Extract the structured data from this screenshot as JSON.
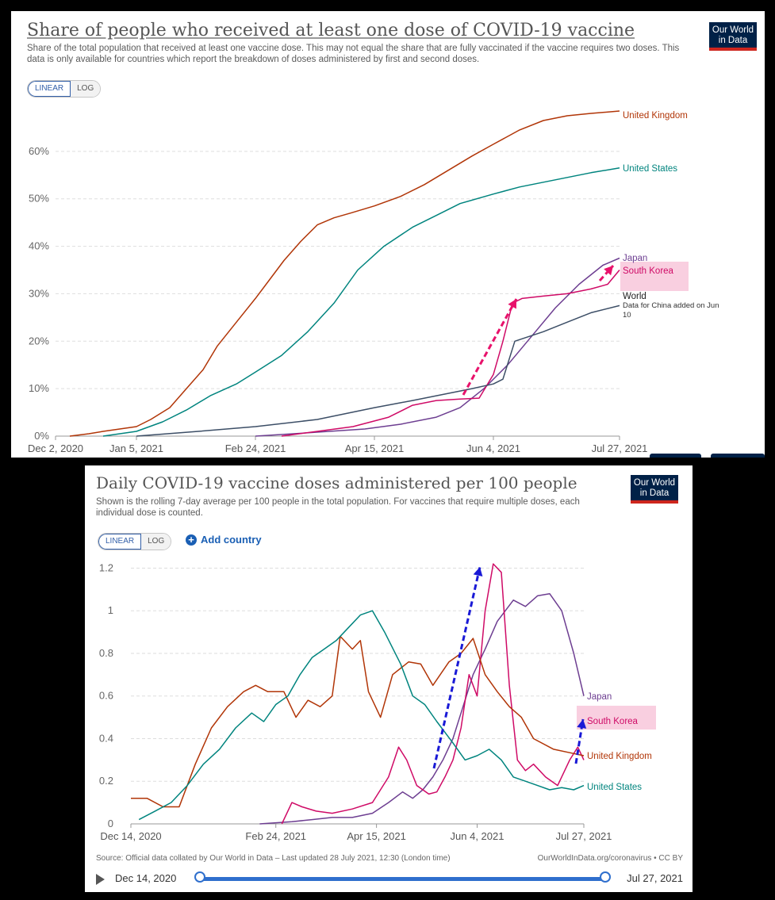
{
  "top_panel": {
    "title": "Share of people who received at least one dose of COVID-19 vaccine",
    "subtitle": "Share of the total population that received at least one vaccine dose. This may not equal the share that are fully vaccinated if the vaccine requires two doses. This data is only available for countries which report the breakdown of doses administered by first and second doses.",
    "logo_line1": "Our World",
    "logo_line2": "in Data",
    "scale_linear": "LINEAR",
    "scale_log": "LOG"
  },
  "bottom_panel": {
    "title": "Daily COVID-19 vaccine doses administered per 100 people",
    "subtitle": "Shown is the rolling 7-day average per 100 people in the total population. For vaccines that require multiple doses, each individual dose is counted.",
    "logo_line1": "Our World",
    "logo_line2": "in Data",
    "scale_linear": "LINEAR",
    "scale_log": "LOG",
    "add_country": "Add country",
    "source": "Source: Official data collated by Our World in Data – Last updated 28 July 2021, 12:30 (London time)",
    "source_right": "OurWorldInData.org/coronavirus • CC BY",
    "timeline_start": "Dec 14, 2020",
    "timeline_end": "Jul 27, 2021"
  },
  "colors": {
    "uk": "#b13507",
    "us": "#00847e",
    "japan": "#6d3e91",
    "south_korea": "#cf0a66",
    "world": "#3c4e66",
    "arrow_top": "#e8126b",
    "arrow_bottom": "#1a1ad6",
    "highlight": "#f9cfe0",
    "grid": "#dddddd"
  },
  "chart_data": [
    {
      "type": "line",
      "title": "Share of people who received at least one dose of COVID-19 vaccine",
      "ylim": [
        0,
        70
      ],
      "yticks": [
        0,
        10,
        20,
        30,
        40,
        50,
        60
      ],
      "ytick_labels": [
        "0%",
        "10%",
        "20%",
        "30%",
        "40%",
        "50%",
        "60%"
      ],
      "xlim": [
        0,
        237
      ],
      "xticks": [
        0,
        34,
        84,
        134,
        184,
        237
      ],
      "xtick_labels": [
        "Dec 2, 2020",
        "Jan 5, 2021",
        "Feb 24, 2021",
        "Apr 15, 2021",
        "Jun 4, 2021",
        "Jul 27, 2021"
      ],
      "series": [
        {
          "name": "United Kingdom",
          "label": "United Kingdom",
          "color": "#b13507",
          "x": [
            6,
            14,
            20,
            34,
            40,
            48,
            55,
            62,
            68,
            76,
            84,
            90,
            96,
            103,
            110,
            117,
            124,
            134,
            145,
            155,
            165,
            175,
            184,
            195,
            205,
            215,
            225,
            237
          ],
          "y": [
            0,
            0.5,
            1,
            2,
            3.5,
            6,
            10,
            14,
            19,
            24,
            29,
            33,
            37,
            41,
            44.5,
            46,
            47,
            48.5,
            50.5,
            53,
            56,
            59,
            61.5,
            64.5,
            66.5,
            67.5,
            68,
            68.5
          ]
        },
        {
          "name": "United States",
          "label": "United States",
          "color": "#00847e",
          "x": [
            20,
            34,
            45,
            55,
            65,
            76,
            84,
            95,
            106,
            117,
            127,
            138,
            150,
            160,
            170,
            184,
            195,
            205,
            215,
            225,
            237
          ],
          "y": [
            0,
            1,
            3,
            5.5,
            8.5,
            11,
            13.5,
            17,
            22,
            28,
            35,
            40,
            44,
            46.5,
            49,
            51,
            52.5,
            53.5,
            54.5,
            55.5,
            56.5
          ]
        },
        {
          "name": "Japan",
          "label": "Japan",
          "color": "#6d3e91",
          "x": [
            84,
            100,
            115,
            130,
            145,
            160,
            170,
            180,
            190,
            200,
            210,
            220,
            230,
            237
          ],
          "y": [
            0,
            0.5,
            1,
            1.5,
            2.5,
            4,
            6,
            10,
            15,
            21,
            27,
            32,
            36,
            37.5
          ]
        },
        {
          "name": "South Korea",
          "label": "South Korea",
          "color": "#cf0a66",
          "x": [
            95,
            110,
            125,
            140,
            150,
            160,
            170,
            178,
            184,
            188,
            192,
            196,
            205,
            215,
            225,
            232,
            237
          ],
          "y": [
            0,
            1,
            2,
            4,
            6.5,
            7.5,
            7.8,
            8,
            13,
            20,
            28,
            29,
            29.5,
            30,
            31,
            32,
            35
          ]
        },
        {
          "name": "World",
          "label": "World",
          "color": "#3c4e66",
          "x": [
            34,
            60,
            84,
            110,
            134,
            150,
            165,
            175,
            184,
            188,
            193,
            205,
            215,
            225,
            237
          ],
          "y": [
            0,
            1,
            2,
            3.5,
            6,
            7.5,
            9,
            10,
            11,
            12,
            20,
            22,
            24,
            26,
            27.5
          ]
        }
      ],
      "annotations": [
        "Data for China added on Jun",
        "10"
      ]
    },
    {
      "type": "line",
      "title": "Daily COVID-19 vaccine doses administered per 100 people",
      "ylim": [
        0,
        1.25
      ],
      "yticks": [
        0,
        0.2,
        0.4,
        0.6,
        0.8,
        1,
        1.2
      ],
      "ytick_labels": [
        "0",
        "0.2",
        "0.4",
        "0.6",
        "0.8",
        "1",
        "1.2"
      ],
      "xlim": [
        0,
        225
      ],
      "xticks": [
        0,
        72,
        122,
        172,
        225
      ],
      "xtick_labels": [
        "Dec 14, 2020",
        "Feb 24, 2021",
        "Apr 15, 2021",
        "Jun 4, 2021",
        "Jul 27, 2021"
      ],
      "series": [
        {
          "name": "Japan",
          "label": "Japan",
          "color": "#6d3e91",
          "x": [
            64,
            80,
            90,
            100,
            110,
            120,
            128,
            135,
            140,
            145,
            150,
            155,
            160,
            165,
            170,
            176,
            182,
            190,
            196,
            202,
            208,
            214,
            220,
            225
          ],
          "y": [
            0,
            0.01,
            0.02,
            0.03,
            0.03,
            0.05,
            0.1,
            0.15,
            0.12,
            0.16,
            0.22,
            0.3,
            0.4,
            0.55,
            0.7,
            0.82,
            0.95,
            1.05,
            1.02,
            1.07,
            1.08,
            1.0,
            0.8,
            0.6
          ]
        },
        {
          "name": "South Korea",
          "label": "South Korea",
          "color": "#cf0a66",
          "x": [
            75,
            80,
            85,
            92,
            100,
            110,
            120,
            128,
            133,
            137,
            142,
            148,
            152,
            156,
            160,
            164,
            168,
            172,
            176,
            180,
            184,
            188,
            192,
            196,
            200,
            206,
            212,
            218,
            222,
            225
          ],
          "y": [
            0,
            0.1,
            0.08,
            0.06,
            0.05,
            0.07,
            0.1,
            0.22,
            0.36,
            0.3,
            0.18,
            0.14,
            0.15,
            0.22,
            0.3,
            0.45,
            0.7,
            0.6,
            1.0,
            1.22,
            1.18,
            0.65,
            0.3,
            0.25,
            0.28,
            0.22,
            0.18,
            0.3,
            0.36,
            0.3
          ]
        },
        {
          "name": "United Kingdom",
          "label": "United Kingdom",
          "color": "#b13507",
          "x": [
            0,
            8,
            16,
            24,
            32,
            40,
            48,
            56,
            62,
            68,
            76,
            82,
            88,
            94,
            100,
            104,
            110,
            114,
            118,
            124,
            130,
            138,
            144,
            150,
            158,
            164,
            170,
            176,
            182,
            188,
            194,
            200,
            210,
            220,
            225
          ],
          "y": [
            0.12,
            0.12,
            0.08,
            0.08,
            0.28,
            0.45,
            0.55,
            0.62,
            0.65,
            0.62,
            0.62,
            0.5,
            0.58,
            0.55,
            0.6,
            0.88,
            0.82,
            0.86,
            0.62,
            0.5,
            0.7,
            0.76,
            0.75,
            0.65,
            0.76,
            0.8,
            0.87,
            0.7,
            0.62,
            0.55,
            0.5,
            0.4,
            0.35,
            0.33,
            0.32
          ]
        },
        {
          "name": "United States",
          "label": "United States",
          "color": "#00847e",
          "x": [
            4,
            12,
            20,
            28,
            36,
            44,
            52,
            60,
            66,
            72,
            78,
            84,
            90,
            96,
            102,
            108,
            114,
            120,
            126,
            134,
            140,
            146,
            152,
            160,
            166,
            172,
            178,
            184,
            190,
            196,
            202,
            208,
            214,
            220,
            225
          ],
          "y": [
            0.02,
            0.06,
            0.1,
            0.18,
            0.28,
            0.35,
            0.45,
            0.52,
            0.48,
            0.56,
            0.6,
            0.7,
            0.78,
            0.82,
            0.86,
            0.92,
            0.98,
            1.0,
            0.9,
            0.75,
            0.6,
            0.56,
            0.48,
            0.38,
            0.3,
            0.32,
            0.35,
            0.3,
            0.22,
            0.2,
            0.18,
            0.16,
            0.17,
            0.16,
            0.18
          ]
        }
      ],
      "highlight_label": "South Korea"
    }
  ]
}
